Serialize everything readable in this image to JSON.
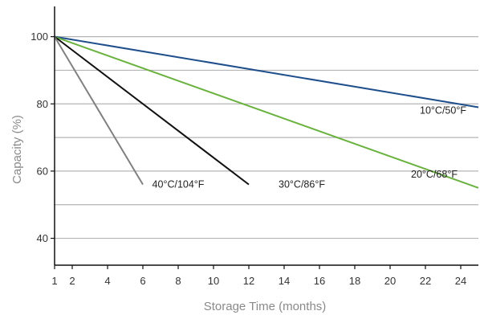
{
  "chart_data": {
    "type": "line",
    "xlabel": "Storage Time (months)",
    "ylabel": "Capacity (%)",
    "xlim": [
      1,
      25
    ],
    "ylim": [
      32,
      109
    ],
    "xticks": [
      1,
      2,
      4,
      6,
      8,
      10,
      12,
      14,
      16,
      18,
      20,
      22,
      24
    ],
    "yticks": [
      40,
      60,
      80,
      100
    ],
    "gridlines_y": [
      40,
      50,
      60,
      70,
      80,
      90,
      100
    ],
    "grid": true,
    "series": [
      {
        "name": "10°C/50°F",
        "color": "#1f4e8c",
        "x": [
          1,
          25
        ],
        "y": [
          100,
          79
        ],
        "label_at": [
          23,
          78
        ]
      },
      {
        "name": "20°C/68°F",
        "color": "#6ab23f",
        "x": [
          1,
          25
        ],
        "y": [
          100,
          55
        ],
        "label_at": [
          22.5,
          59
        ]
      },
      {
        "name": "30°C/86°F",
        "color": "#111111",
        "x": [
          1,
          12
        ],
        "y": [
          100,
          56
        ],
        "label_at": [
          15,
          56
        ]
      },
      {
        "name": "40°C/104°F",
        "color": "#808080",
        "x": [
          1,
          6
        ],
        "y": [
          100,
          56
        ],
        "label_at": [
          8,
          56
        ]
      }
    ]
  }
}
